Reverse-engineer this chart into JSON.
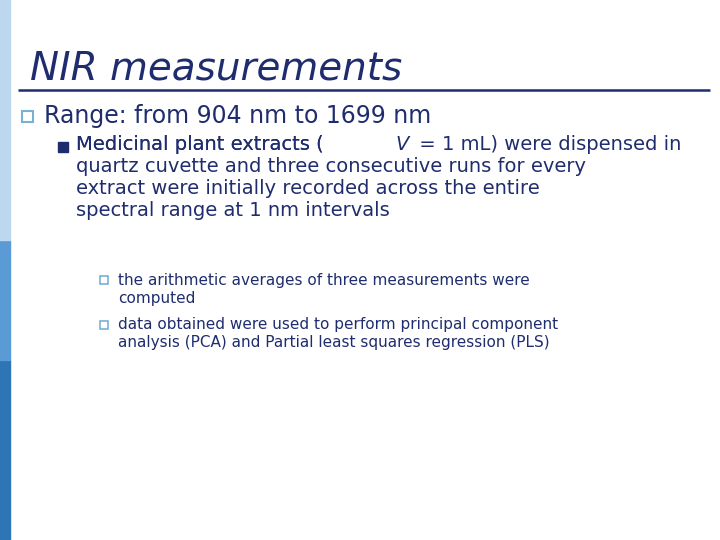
{
  "title": "NIR measurements",
  "title_color": "#1F2D6E",
  "title_fontsize": 28,
  "title_fontstyle": "italic",
  "title_fontweight": "normal",
  "separator_color": "#1F2D6E",
  "background_color": "#FFFFFF",
  "left_bar_top_color": "#BDD7EE",
  "left_bar_mid_color": "#5B9BD5",
  "left_bar_bot_color": "#2E75B6",
  "bullet1_text": "Range: from 904 nm to 1699 nm",
  "bullet1_color": "#1F2D6E",
  "bullet1_square_color": "#7AB0D4",
  "bullet1_fontsize": 17,
  "bullet2_pre": "Medicinal plant extracts (",
  "bullet2_italic": "V",
  "bullet2_post": " = 1 mL) were dispensed in",
  "bullet2_line2": "quartz cuvette and three consecutive runs for every",
  "bullet2_line3": "extract were initially recorded across the entire",
  "bullet2_line4": "spectral range at 1 nm intervals",
  "bullet2_color": "#1F2D6E",
  "bullet2_fontsize": 14,
  "sub_bullet1_line1": "the arithmetic averages of three measurements were",
  "sub_bullet1_line2": "computed",
  "sub_bullet2_line1": "data obtained were used to perform principal component",
  "sub_bullet2_line2": "analysis (PCA) and Partial least squares regression (PLS)",
  "sub_bullet_color": "#1F2D6E",
  "sub_bullet_fontsize": 11,
  "sub_bullet_square_color": "#7AB0D4"
}
